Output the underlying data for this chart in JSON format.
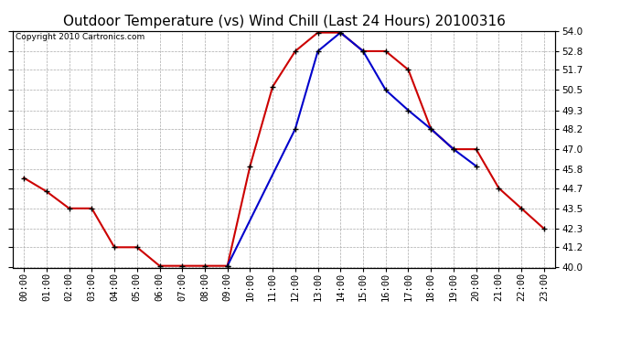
{
  "title": "Outdoor Temperature (vs) Wind Chill (Last 24 Hours) 20100316",
  "copyright": "Copyright 2010 Cartronics.com",
  "hours": [
    "00:00",
    "01:00",
    "02:00",
    "03:00",
    "04:00",
    "05:00",
    "06:00",
    "07:00",
    "08:00",
    "09:00",
    "10:00",
    "11:00",
    "12:00",
    "13:00",
    "14:00",
    "15:00",
    "16:00",
    "17:00",
    "18:00",
    "19:00",
    "20:00",
    "21:00",
    "22:00",
    "23:00"
  ],
  "temp": [
    45.3,
    44.5,
    43.5,
    43.5,
    41.2,
    41.2,
    40.1,
    40.1,
    40.1,
    40.1,
    46.0,
    50.7,
    52.8,
    53.9,
    53.9,
    52.8,
    52.8,
    51.7,
    48.2,
    47.0,
    47.0,
    44.7,
    43.5,
    42.3
  ],
  "windchill": [
    null,
    null,
    null,
    null,
    null,
    null,
    null,
    null,
    null,
    40.1,
    null,
    null,
    48.2,
    52.8,
    53.9,
    52.8,
    50.5,
    49.3,
    48.2,
    47.0,
    46.0,
    null,
    null,
    null
  ],
  "temp_color": "#cc0000",
  "windchill_color": "#0000cc",
  "marker_color": "#000000",
  "bg_color": "#ffffff",
  "grid_color": "#aaaaaa",
  "ylim": [
    40.0,
    54.0
  ],
  "yticks": [
    40.0,
    41.2,
    42.3,
    43.5,
    44.7,
    45.8,
    47.0,
    48.2,
    49.3,
    50.5,
    51.7,
    52.8,
    54.0
  ],
  "title_fontsize": 11,
  "copyright_fontsize": 6.5,
  "tick_fontsize": 7.5
}
